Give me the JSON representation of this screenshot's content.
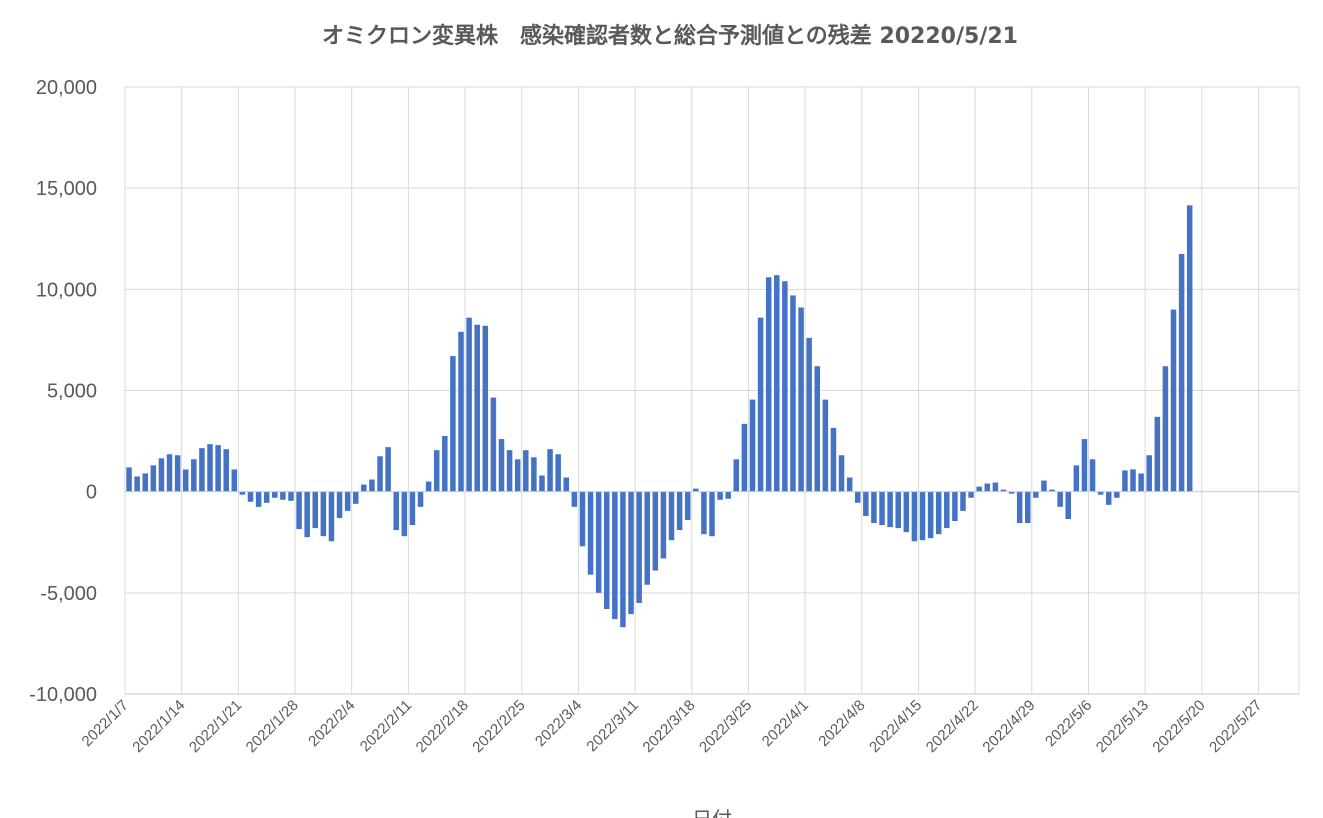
{
  "chart_data": {
    "type": "bar",
    "title": "オミクロン変異株　感染確認者数と総合予測値との残差  20220/5/21",
    "xlabel": "日付",
    "ylabel": "",
    "ylim": [
      -10000,
      20000
    ],
    "yticks": [
      20000,
      15000,
      10000,
      5000,
      0,
      -5000,
      -10000
    ],
    "ytick_labels": [
      "20,000",
      "15,000",
      "10,000",
      "5,000",
      "0",
      "-5,000",
      "-10,000"
    ],
    "x_start": "2022/1/7",
    "x_end": "2022/5/31",
    "xtick_labels": [
      "2022/1/7",
      "2022/1/14",
      "2022/1/21",
      "2022/1/28",
      "2022/2/4",
      "2022/2/11",
      "2022/2/18",
      "2022/2/25",
      "2022/3/4",
      "2022/3/11",
      "2022/3/18",
      "2022/3/25",
      "2022/4/1",
      "2022/4/8",
      "2022/4/15",
      "2022/4/22",
      "2022/4/29",
      "2022/5/6",
      "2022/5/13",
      "2022/5/20",
      "2022/5/27"
    ],
    "grid": true,
    "bar_color": "#4472C4",
    "series": [
      {
        "values": [
          1200,
          750,
          900,
          1300,
          1650,
          1850,
          1800,
          1100,
          1600,
          2150,
          2350,
          2300,
          2100,
          1100,
          -150,
          -500,
          -750,
          -550,
          -300,
          -400,
          -450,
          -1850,
          -2250,
          -1800,
          -2200,
          -2450,
          -1300,
          -950,
          -600,
          350,
          600,
          1750,
          2200,
          -1900,
          -2200,
          -1650,
          -750,
          500,
          2050,
          2750,
          6700,
          7900,
          8600,
          8250,
          8200,
          4650,
          2600,
          2050,
          1600,
          2050,
          1700,
          800,
          2100,
          1850,
          700,
          -750,
          -2700,
          -4100,
          -5000,
          -5800,
          -6300,
          -6700,
          -6050,
          -5500,
          -4600,
          -3900,
          -3300,
          -2400,
          -1900,
          -1400,
          150,
          -2100,
          -2200,
          -400,
          -350,
          1600,
          3350,
          4550,
          8600,
          10600,
          10700,
          10400,
          9700,
          9100,
          7600,
          6200,
          4550,
          3150,
          1800,
          700,
          -550,
          -1200,
          -1550,
          -1650,
          -1750,
          -1800,
          -2000,
          -2450,
          -2400,
          -2300,
          -2100,
          -1800,
          -1450,
          -950,
          -300,
          250,
          400,
          450,
          100,
          -100,
          -1550,
          -1550,
          -300,
          550,
          100,
          -750,
          -1350,
          1300,
          2600,
          1600,
          -150,
          -650,
          -300,
          1050,
          1100,
          900,
          1800,
          3700,
          6200,
          9000,
          11750,
          14150
        ]
      }
    ]
  }
}
